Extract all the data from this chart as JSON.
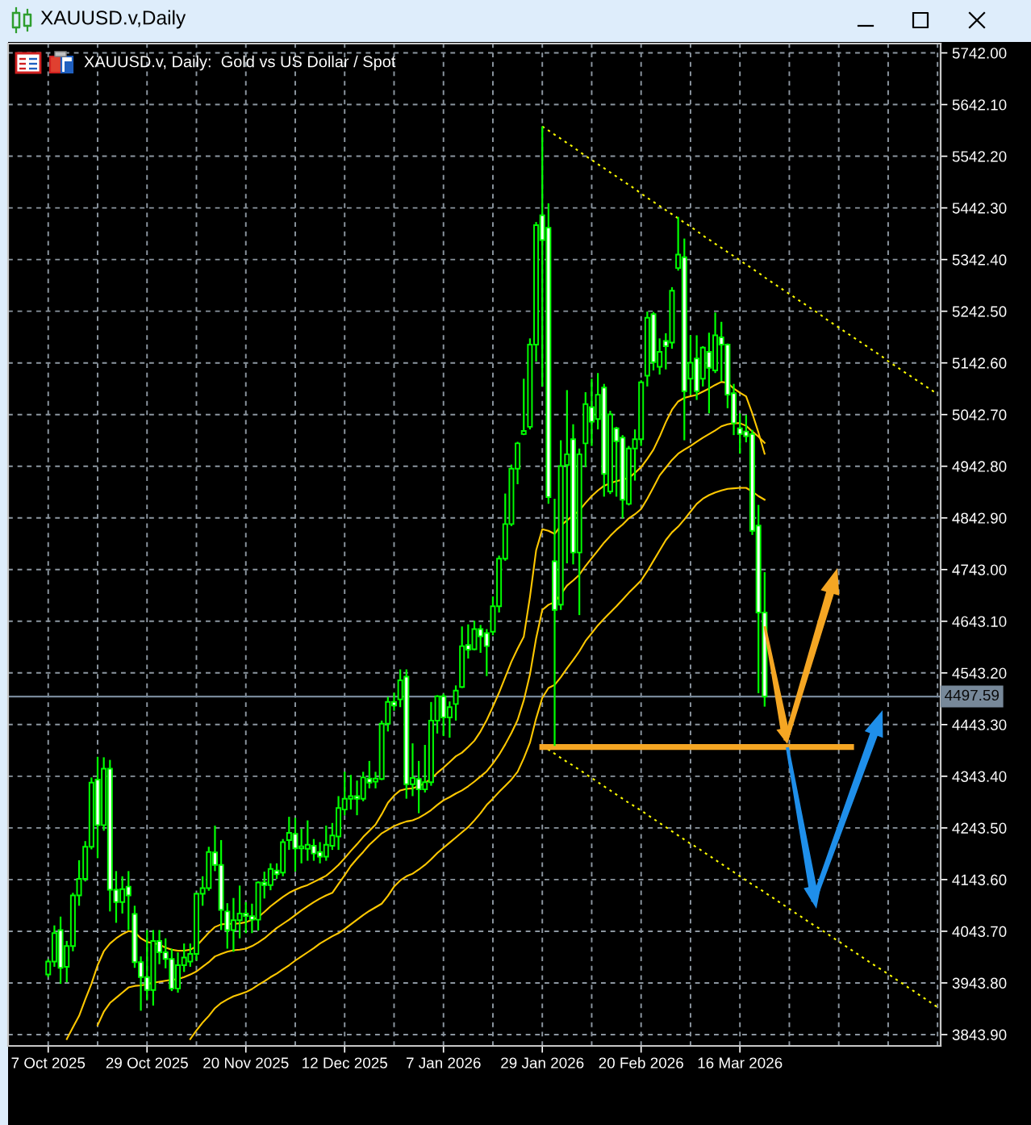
{
  "chart_data": {
    "type": "candlestick",
    "title": "XAUUSD.v,Daily",
    "subtitle": "XAUUSD.v, Daily:  Gold vs US Dollar / Spot",
    "categories": [
      "7 Oct 2025",
      null,
      null,
      null,
      null,
      null,
      null,
      null,
      null,
      null,
      null,
      null,
      null,
      null,
      null,
      null,
      "29 Oct 2025",
      null,
      null,
      null,
      null,
      null,
      null,
      null,
      null,
      null,
      null,
      null,
      null,
      null,
      null,
      null,
      "20 Nov 2025",
      null,
      null,
      null,
      null,
      null,
      null,
      null,
      null,
      null,
      null,
      null,
      null,
      null,
      null,
      null,
      "12 Dec 2025",
      null,
      null,
      null,
      null,
      null,
      null,
      null,
      null,
      null,
      null,
      null,
      null,
      null,
      null,
      null,
      "7 Jan 2026",
      null,
      null,
      null,
      null,
      null,
      null,
      null,
      null,
      null,
      null,
      null,
      null,
      null,
      null,
      null,
      "29 Jan 2026",
      null,
      null,
      null,
      null,
      null,
      null,
      null,
      null,
      null,
      null,
      null,
      null,
      null,
      null,
      null,
      "20 Feb 2026",
      null,
      null,
      null,
      null,
      null,
      null,
      null,
      null,
      null,
      null,
      null,
      null,
      null,
      null,
      null,
      "16 Mar 2026",
      null,
      null,
      null,
      null,
      null,
      null,
      null,
      null,
      null,
      null,
      null,
      null,
      null,
      null,
      null,
      null,
      null,
      null,
      null,
      null,
      null,
      null,
      null,
      null,
      null,
      null,
      null,
      null,
      null,
      null,
      null,
      null
    ],
    "color": "#00ff00",
    "colors": [
      "#000000",
      "#000000",
      "#ffffff",
      "#000000",
      "#000000",
      "#000000",
      "#000000",
      "#000000",
      "#ffffff",
      "#000000",
      "#ffffff",
      "#ffffff",
      "#000000",
      "#ffffff",
      "#ffffff",
      "#ffffff",
      "#ffffff",
      "#000000",
      "#ffffff",
      "#ffffff",
      "#ffffff",
      "#000000",
      "#000000",
      "#000000",
      "#000000",
      "#000000",
      "#000000",
      "#ffffff",
      "#ffffff",
      "#ffffff",
      "#000000",
      "#000000",
      "#ffffff",
      "#ffffff",
      "#000000",
      "#ffffff",
      "#000000",
      "#ffffff",
      "#000000",
      "#000000",
      "#ffffff",
      "#000000",
      "#000000",
      "#ffffff",
      "#ffffff",
      "#000000",
      "#000000",
      "#000000",
      "#000000",
      "#000000",
      "#ffffff",
      "#000000",
      "#ffffff",
      "#000000",
      "#000000",
      "#000000",
      "#ffffff",
      "#000000",
      "#ffffff",
      "#000000",
      "#ffffff",
      "#000000",
      "#000000",
      "#000000",
      "#ffffff",
      "#000000",
      "#000000",
      "#000000",
      "#ffffff",
      "#000000",
      "#ffffff",
      "#ffffff",
      "#000000",
      "#000000",
      "#000000",
      "#000000",
      "#000000",
      "#000000",
      "#000000",
      "#000000",
      "#ffffff",
      "#ffffff",
      "#ffffff",
      "#000000",
      "#000000",
      "#ffffff",
      "#000000",
      "#000000",
      "#ffffff",
      "#000000",
      "#ffffff",
      "#000000",
      "#ffffff",
      "#ffffff",
      "#000000",
      "#000000",
      "#000000",
      "#000000",
      "#ffffff",
      "#000000",
      "#ffffff",
      "#000000",
      "#000000",
      "#ffffff",
      "#000000",
      "#ffffff",
      "#000000",
      "#ffffff",
      "#000000",
      "#ffffff",
      "#ffffff",
      "#ffffff",
      "#ffffff",
      "#ffffff",
      "#ffffff",
      "#ffffff",
      "#ffffff",
      null,
      null,
      null,
      null,
      null,
      null,
      null,
      null,
      null,
      null,
      null,
      null,
      null,
      null,
      null,
      null,
      null,
      null,
      null,
      null,
      null,
      null,
      null,
      null,
      null,
      null,
      null,
      null
    ],
    "ohlc": [
      [
        3960,
        3990,
        3955,
        3985
      ],
      [
        3985,
        4055,
        3975,
        4040
      ],
      [
        4046,
        4072,
        3942,
        3973
      ],
      [
        3975,
        4025,
        3945,
        4015
      ],
      [
        4015,
        4118,
        4005,
        4113
      ],
      [
        4113,
        4181,
        4093,
        4145
      ],
      [
        4145,
        4218,
        4140,
        4207
      ],
      [
        4207,
        4341,
        4202,
        4331
      ],
      [
        4337,
        4381,
        4185,
        4249
      ],
      [
        4249,
        4380,
        4238,
        4358
      ],
      [
        4358,
        4375,
        4082,
        4124
      ],
      [
        4124,
        4160,
        4060,
        4100
      ],
      [
        4100,
        4150,
        4078,
        4125
      ],
      [
        4130,
        4160,
        4046,
        4113
      ],
      [
        4077,
        4093,
        3973,
        3984
      ],
      [
        3984,
        3995,
        3890,
        3955
      ],
      [
        3955,
        4046,
        3910,
        3930
      ],
      [
        3930,
        4046,
        3900,
        4025
      ],
      [
        4025,
        4046,
        3980,
        4003
      ],
      [
        4003,
        4030,
        3972,
        3990
      ],
      [
        3990,
        4010,
        3928,
        3933
      ],
      [
        3933,
        4003,
        3925,
        3978
      ],
      [
        3978,
        4020,
        3965,
        3993
      ],
      [
        3985,
        4020,
        3975,
        4000
      ],
      [
        4000,
        4118,
        3987,
        4116
      ],
      [
        4116,
        4150,
        4093,
        4127
      ],
      [
        4127,
        4207,
        4122,
        4197
      ],
      [
        4196,
        4248,
        4160,
        4172
      ],
      [
        4172,
        4220,
        4046,
        4085
      ],
      [
        4082,
        4098,
        4010,
        4046
      ],
      [
        4046,
        4108,
        4004,
        4065
      ],
      [
        4065,
        4132,
        4030,
        4078
      ],
      [
        4078,
        4100,
        4040,
        4073
      ],
      [
        4073,
        4097,
        4040,
        4066
      ],
      [
        4066,
        4140,
        4045,
        4138
      ],
      [
        4138,
        4159,
        4107,
        4133
      ],
      [
        4133,
        4175,
        4123,
        4164
      ],
      [
        4161,
        4175,
        4145,
        4154
      ],
      [
        4157,
        4222,
        4150,
        4216
      ],
      [
        4220,
        4265,
        4201,
        4234
      ],
      [
        4232,
        4263,
        4159,
        4204
      ],
      [
        4204,
        4242,
        4175,
        4208
      ],
      [
        4203,
        4258,
        4180,
        4211
      ],
      [
        4209,
        4222,
        4180,
        4194
      ],
      [
        4197,
        4216,
        4175,
        4188
      ],
      [
        4188,
        4248,
        4180,
        4211
      ],
      [
        4209,
        4253,
        4201,
        4229
      ],
      [
        4227,
        4305,
        4201,
        4282
      ],
      [
        4279,
        4352,
        4268,
        4300
      ],
      [
        4300,
        4346,
        4279,
        4305
      ],
      [
        4305,
        4335,
        4268,
        4300
      ],
      [
        4300,
        4352,
        4295,
        4341
      ],
      [
        4339,
        4373,
        4320,
        4331
      ],
      [
        4333,
        4352,
        4320,
        4339
      ],
      [
        4338,
        4451,
        4336,
        4445
      ],
      [
        4445,
        4497,
        4430,
        4487
      ],
      [
        4487,
        4505,
        4470,
        4480
      ],
      [
        4492,
        4550,
        4477,
        4529
      ],
      [
        4536,
        4550,
        4300,
        4328
      ],
      [
        4328,
        4407,
        4305,
        4340
      ],
      [
        4338,
        4373,
        4272,
        4318
      ],
      [
        4318,
        4404,
        4312,
        4332
      ],
      [
        4332,
        4487,
        4325,
        4451
      ],
      [
        4451,
        4500,
        4426,
        4498
      ],
      [
        4498,
        4503,
        4421,
        4457
      ],
      [
        4457,
        4488,
        4418,
        4477
      ],
      [
        4483,
        4519,
        4451,
        4509
      ],
      [
        4516,
        4633,
        4514,
        4595
      ],
      [
        4597,
        4637,
        4571,
        4588
      ],
      [
        4589,
        4644,
        4587,
        4628
      ],
      [
        4628,
        4636,
        4582,
        4614
      ],
      [
        4620,
        4628,
        4537,
        4595
      ],
      [
        4623,
        4691,
        4616,
        4672
      ],
      [
        4672,
        4770,
        4660,
        4764
      ],
      [
        4764,
        4890,
        4760,
        4831
      ],
      [
        4831,
        4946,
        4827,
        4938
      ],
      [
        4938,
        4990,
        4908,
        4987
      ],
      [
        5005,
        5112,
        5003,
        5011
      ],
      [
        5019,
        5190,
        5014,
        5178
      ],
      [
        5178,
        5415,
        5145,
        5409
      ],
      [
        5428,
        5600,
        5097,
        5380
      ],
      [
        5404,
        5451,
        4870,
        4883
      ],
      [
        4759,
        4880,
        4402,
        4665
      ],
      [
        4675,
        4993,
        4665,
        4943
      ],
      [
        4945,
        5090,
        4755,
        4966
      ],
      [
        4995,
        5024,
        4753,
        4776
      ],
      [
        4776,
        4977,
        4655,
        4966
      ],
      [
        4987,
        5086,
        4941,
        5063
      ],
      [
        5057,
        5112,
        4982,
        5029
      ],
      [
        5034,
        5123,
        5014,
        5081
      ],
      [
        5095,
        5102,
        4884,
        4928
      ],
      [
        4894,
        5050,
        4889,
        5043
      ],
      [
        5016,
        5019,
        4884,
        4991
      ],
      [
        4998,
        5003,
        4842,
        4878
      ],
      [
        4870,
        4982,
        4867,
        4977
      ],
      [
        4977,
        5014,
        4915,
        4995
      ],
      [
        4995,
        5109,
        4982,
        5105
      ],
      [
        5118,
        5242,
        5097,
        5230
      ],
      [
        5237,
        5241,
        5128,
        5144
      ],
      [
        5135,
        5190,
        5120,
        5164
      ],
      [
        5185,
        5200,
        5130,
        5175
      ],
      [
        5182,
        5289,
        5170,
        5282
      ],
      [
        5326,
        5425,
        5321,
        5352
      ],
      [
        5347,
        5383,
        4993,
        5088
      ],
      [
        5112,
        5196,
        5081,
        5143
      ],
      [
        5151,
        5196,
        5071,
        5088
      ],
      [
        5112,
        5175,
        5097,
        5172
      ],
      [
        5164,
        5201,
        5045,
        5133
      ],
      [
        5128,
        5240,
        5123,
        5196
      ],
      [
        5192,
        5222,
        5107,
        5178
      ],
      [
        5178,
        5180,
        5055,
        5081
      ],
      [
        5084,
        5102,
        5003,
        5026
      ],
      [
        5016,
        5045,
        4967,
        5005
      ],
      [
        5010,
        5042,
        4989,
        5001
      ],
      [
        5005,
        5013,
        4810,
        4818
      ],
      [
        4828,
        4868,
        4504,
        4660
      ],
      [
        4660,
        4738,
        4478,
        4497.59
      ],
      null,
      null,
      null,
      null,
      null,
      null,
      null,
      null,
      null,
      null,
      null,
      null,
      null,
      null,
      null,
      null,
      null,
      null,
      null,
      null,
      null,
      null,
      null,
      null,
      null,
      null,
      null,
      null
    ],
    "series": [
      {
        "type": "line",
        "color": "#ffc800",
        "line_style": "solid",
        "values": [
          null,
          null,
          null,
          3835,
          3858,
          3880,
          3912,
          3942,
          3978,
          4005,
          4020,
          4030,
          4038,
          4044,
          4042,
          4030,
          4023,
          4021,
          4018,
          4012,
          4008,
          4006,
          4006,
          4008,
          4015,
          4028,
          4041,
          4052,
          4057,
          4058,
          4058,
          4059,
          4061,
          4066,
          4071,
          4081,
          4092,
          4101,
          4110,
          4118,
          4124,
          4129,
          4133,
          4139,
          4145,
          4151,
          4161,
          4172,
          4185,
          4199,
          4212,
          4226,
          4238,
          4250,
          4270,
          4292,
          4306,
          4316,
          4319,
          4320,
          4324,
          4331,
          4338,
          4350,
          4360,
          4371,
          4382,
          4389,
          4400,
          4412,
          4430,
          4452,
          4478,
          4505,
          4535,
          4565,
          4590,
          4613,
          4690,
          4780,
          4821,
          4818,
          4812,
          4828,
          4838,
          4848,
          4857,
          4872,
          4885,
          4896,
          4905,
          4910,
          4914,
          4917,
          4920,
          4930,
          4941,
          4957,
          4975,
          5000,
          5028,
          5052,
          5068,
          5075,
          5078,
          5081,
          5087,
          5093,
          5100,
          5106,
          5104,
          5093,
          5085,
          5078,
          5045,
          5008,
          4967,
          null,
          null,
          null,
          null,
          null,
          null,
          null,
          null,
          null,
          null,
          null,
          null,
          null,
          null,
          null,
          null,
          null,
          null,
          null,
          null,
          null,
          null,
          null,
          null,
          null,
          null,
          null,
          null
        ]
      },
      {
        "type": "line",
        "color": "#ffc800",
        "line_style": "solid",
        "values": [
          null,
          null,
          null,
          null,
          null,
          null,
          null,
          null,
          3862,
          3888,
          3905,
          3915,
          3925,
          3935,
          3938,
          3939,
          3941,
          3944,
          3946,
          3948,
          3950,
          3951,
          3955,
          3960,
          3966,
          3975,
          3984,
          3995,
          4000,
          4004,
          4007,
          4008,
          4010,
          4015,
          4022,
          4030,
          4040,
          4050,
          4058,
          4066,
          4075,
          4084,
          4092,
          4100,
          4107,
          4113,
          4118,
          4135,
          4152,
          4170,
          4184,
          4197,
          4211,
          4222,
          4233,
          4240,
          4247,
          4252,
          4256,
          4258,
          4263,
          4270,
          4278,
          4288,
          4297,
          4303,
          4310,
          4316,
          4324,
          4333,
          4343,
          4353,
          4368,
          4385,
          4405,
          4427,
          4452,
          4490,
          4540,
          4610,
          4665,
          4675,
          4680,
          4695,
          4712,
          4722,
          4733,
          4750,
          4765,
          4780,
          4795,
          4808,
          4820,
          4830,
          4842,
          4850,
          4860,
          4880,
          4902,
          4925,
          4940,
          4955,
          4967,
          4975,
          4982,
          4990,
          4998,
          5005,
          5012,
          5020,
          5024,
          5026,
          5026,
          5021,
          5010,
          5000,
          4988,
          null,
          null,
          null,
          null,
          null,
          null,
          null,
          null,
          null,
          null,
          null,
          null,
          null,
          null,
          null,
          null,
          null,
          null,
          null,
          null,
          null,
          null,
          null,
          null,
          null,
          null,
          null,
          null
        ]
      },
      {
        "type": "line",
        "color": "#ffc800",
        "line_style": "solid",
        "values": [
          null,
          null,
          null,
          null,
          null,
          null,
          null,
          null,
          null,
          null,
          null,
          null,
          null,
          null,
          null,
          null,
          null,
          null,
          null,
          null,
          null,
          null,
          null,
          3835,
          3852,
          3867,
          3880,
          3895,
          3905,
          3912,
          3918,
          3922,
          3926,
          3932,
          3940,
          3947,
          3955,
          3962,
          3970,
          3978,
          3987,
          3995,
          4003,
          4011,
          4020,
          4027,
          4034,
          4040,
          4048,
          4057,
          4066,
          4075,
          4083,
          4090,
          4097,
          4112,
          4130,
          4142,
          4150,
          4155,
          4163,
          4172,
          4183,
          4195,
          4205,
          4215,
          4225,
          4235,
          4245,
          4258,
          4272,
          4288,
          4300,
          4313,
          4325,
          4337,
          4352,
          4378,
          4408,
          4455,
          4495,
          4514,
          4520,
          4535,
          4552,
          4568,
          4585,
          4605,
          4620,
          4635,
          4648,
          4660,
          4672,
          4685,
          4698,
          4710,
          4722,
          4740,
          4760,
          4780,
          4800,
          4815,
          4826,
          4840,
          4855,
          4870,
          4880,
          4887,
          4892,
          4896,
          4899,
          4900,
          4901,
          4901,
          4894,
          4885,
          4878,
          null,
          null,
          null,
          null,
          null,
          null,
          null,
          null,
          null,
          null,
          null,
          null,
          null,
          null,
          null,
          null,
          null,
          null,
          null,
          null,
          null,
          null,
          null,
          null,
          null,
          null,
          null,
          null
        ]
      },
      {
        "type": "line",
        "color": "#ffff00",
        "line_style": "dotted",
        "values": [
          null,
          null,
          null,
          null,
          null,
          null,
          null,
          null,
          null,
          null,
          null,
          null,
          null,
          null,
          null,
          null,
          null,
          null,
          null,
          null,
          null,
          null,
          null,
          null,
          null,
          null,
          null,
          null,
          null,
          null,
          null,
          null,
          null,
          null,
          null,
          null,
          null,
          null,
          null,
          null,
          null,
          null,
          null,
          null,
          null,
          null,
          null,
          null,
          null,
          null,
          null,
          null,
          null,
          null,
          null,
          null,
          null,
          null,
          null,
          null,
          null,
          null,
          null,
          null,
          null,
          null,
          null,
          null,
          null,
          null,
          null,
          null,
          null,
          null,
          null,
          null,
          null,
          null,
          null,
          null,
          5600,
          5592,
          5584,
          5576,
          5568,
          5560,
          5551,
          5543,
          5535,
          5527,
          5519,
          5511,
          5503,
          5495,
          5487,
          5479,
          5470,
          5462,
          5454,
          5446,
          5438,
          5430,
          5422,
          5414,
          5406,
          5398,
          5389,
          5381,
          5373,
          5365,
          5357,
          5349,
          5341,
          5333,
          5325,
          5317,
          5308,
          5300,
          5292,
          5284,
          5276,
          5268,
          5260,
          5252,
          5244,
          5236,
          5227,
          5219,
          5211,
          5203,
          5195,
          5187,
          5179,
          5171,
          5163,
          5155,
          5146,
          5138,
          5130,
          5122,
          5114,
          5106,
          5098,
          5090,
          5082
        ]
      },
      {
        "type": "line",
        "color": "#ffff00",
        "line_style": "dotted",
        "values": [
          null,
          null,
          null,
          null,
          null,
          null,
          null,
          null,
          null,
          null,
          null,
          null,
          null,
          null,
          null,
          null,
          null,
          null,
          null,
          null,
          null,
          null,
          null,
          null,
          null,
          null,
          null,
          null,
          null,
          null,
          null,
          null,
          null,
          null,
          null,
          null,
          null,
          null,
          null,
          null,
          null,
          null,
          null,
          null,
          null,
          null,
          null,
          null,
          null,
          null,
          null,
          null,
          null,
          null,
          null,
          null,
          null,
          null,
          null,
          null,
          null,
          null,
          null,
          null,
          null,
          null,
          null,
          null,
          null,
          null,
          null,
          null,
          null,
          null,
          null,
          null,
          null,
          null,
          null,
          null,
          4403,
          4395,
          4387,
          4379,
          4371,
          4364,
          4356,
          4348,
          4340,
          4332,
          4324,
          4316,
          4308,
          4300,
          4292,
          4285,
          4277,
          4269,
          4261,
          4253,
          4245,
          4237,
          4229,
          4221,
          4213,
          4206,
          4198,
          4190,
          4182,
          4174,
          4166,
          4158,
          4150,
          4142,
          4134,
          4127,
          4119,
          4111,
          4103,
          4095,
          4087,
          4079,
          4071,
          4063,
          4055,
          4048,
          4040,
          4032,
          4024,
          4016,
          4008,
          4000,
          3992,
          3984,
          3976,
          3969,
          3961,
          3953,
          3945,
          3937,
          3929,
          3921,
          3913,
          3905,
          3897
        ]
      },
      {
        "type": "line",
        "color": "#f5a623",
        "line_style": "solid",
        "values": [
          null,
          null,
          null,
          null,
          null,
          null,
          null,
          null,
          null,
          null,
          null,
          null,
          null,
          null,
          null,
          null,
          null,
          null,
          null,
          null,
          null,
          null,
          null,
          null,
          null,
          null,
          null,
          null,
          null,
          null,
          null,
          null,
          null,
          null,
          null,
          null,
          null,
          null,
          null,
          null,
          null,
          null,
          null,
          null,
          null,
          null,
          null,
          null,
          null,
          null,
          null,
          null,
          null,
          null,
          null,
          null,
          null,
          null,
          null,
          null,
          null,
          null,
          null,
          null,
          null,
          null,
          null,
          null,
          null,
          null,
          null,
          null,
          null,
          null,
          null,
          null,
          null,
          null,
          null,
          null,
          4400,
          4400,
          4400,
          4400,
          4400,
          4400,
          4400,
          4400,
          4400,
          4400,
          4400,
          4400,
          4400,
          4400,
          4400,
          4400,
          4400,
          4400,
          4400,
          4400,
          4400,
          4400,
          4400,
          4400,
          4400,
          4400,
          4400,
          4400,
          4400,
          4400,
          4400,
          4400,
          4400,
          4400,
          4400,
          4400,
          4400,
          4400,
          4400,
          4400,
          4400,
          4400,
          4400,
          4400,
          4400,
          4400,
          4400,
          4400,
          4400,
          4400,
          4400,
          null,
          null,
          null,
          null,
          null,
          null,
          null,
          null,
          null,
          null,
          null,
          null,
          null,
          null
        ]
      }
    ],
    "ylim": [
      3822,
      5760
    ],
    "yticks": [
      {
        "value": 5742.0,
        "label": "5742.00"
      },
      {
        "value": 5642.1,
        "label": "5642.10"
      },
      {
        "value": 5542.2,
        "label": "5542.20"
      },
      {
        "value": 5442.3,
        "label": "5442.30"
      },
      {
        "value": 5342.4,
        "label": "5342.40"
      },
      {
        "value": 5242.5,
        "label": "5242.50"
      },
      {
        "value": 5142.6,
        "label": "5142.60"
      },
      {
        "value": 5042.7,
        "label": "5042.70"
      },
      {
        "value": 4942.8,
        "label": "4942.80"
      },
      {
        "value": 4842.9,
        "label": "4842.90"
      },
      {
        "value": 4743.0,
        "label": "4743.00"
      },
      {
        "value": 4643.1,
        "label": "4643.10"
      },
      {
        "value": 4543.2,
        "label": "4543.20"
      },
      {
        "value": 4443.3,
        "label": "4443.30"
      },
      {
        "value": 4343.4,
        "label": "4343.40"
      },
      {
        "value": 4243.5,
        "label": "4243.50"
      },
      {
        "value": 4143.6,
        "label": "4143.60"
      },
      {
        "value": 4043.7,
        "label": "4043.70"
      },
      {
        "value": 3943.8,
        "label": "3943.80"
      },
      {
        "value": 3843.9,
        "label": "3843.90"
      }
    ],
    "ref_lines": [
      {
        "axis": "y",
        "value": 4497.59,
        "label": "4497.59",
        "color": "#778899"
      }
    ],
    "grid": true
  }
}
